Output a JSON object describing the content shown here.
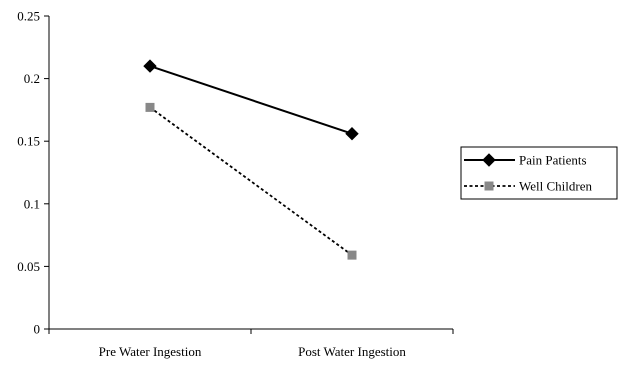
{
  "chart_data": {
    "type": "line",
    "categories": [
      "Pre Water Ingestion",
      "Post Water Ingestion"
    ],
    "ylim": [
      0,
      0.25
    ],
    "yticks": [
      "0",
      "0.05",
      "0.1",
      "0.15",
      "0.2",
      "0.25"
    ],
    "grid": false,
    "legend_position": "right",
    "series": [
      {
        "name": "Pain Patients",
        "values": [
          0.21,
          0.156
        ],
        "color": "#000000",
        "line_style": "solid",
        "marker": "diamond"
      },
      {
        "name": "Well Children",
        "values": [
          0.177,
          0.059
        ],
        "color": "#888888",
        "line_color": "#000000",
        "line_style": "dotted",
        "marker": "square"
      }
    ]
  }
}
